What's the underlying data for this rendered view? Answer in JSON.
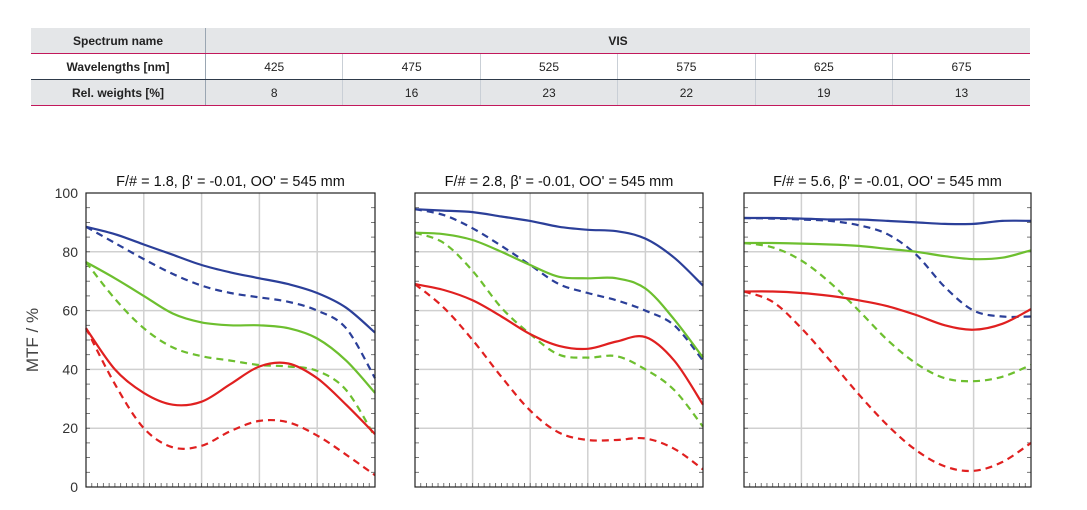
{
  "table": {
    "spectrum_label": "Spectrum name",
    "spectrum_value": "VIS",
    "wavelength_label": "Wavelengths [nm]",
    "wavelengths": [
      "425",
      "475",
      "525",
      "575",
      "625",
      "675"
    ],
    "weights_label": "Rel. weights [%]",
    "weights": [
      "8",
      "16",
      "23",
      "22",
      "19",
      "13"
    ],
    "accent_color": "#c2185b"
  },
  "chart_data": [
    {
      "type": "line",
      "title": "F/# = 1.8, β' = -0.01, OO' = 545 mm",
      "ylabel": "MTF / %",
      "xlabel": "",
      "ylim": [
        0,
        100
      ],
      "xlim": [
        0,
        100
      ],
      "yticks": [
        "0",
        "20",
        "40",
        "60",
        "80",
        "100"
      ],
      "grid": true,
      "series": [
        {
          "color": "#2b3f99",
          "dash": false,
          "x": [
            0,
            10,
            20,
            30,
            40,
            50,
            60,
            70,
            80,
            90,
            100
          ],
          "y": [
            88.5,
            86,
            82.5,
            79,
            75.5,
            73,
            71,
            69,
            66,
            61,
            52.5
          ]
        },
        {
          "color": "#2b3f99",
          "dash": true,
          "x": [
            0,
            10,
            20,
            30,
            40,
            50,
            60,
            70,
            80,
            90,
            100
          ],
          "y": [
            88.5,
            83,
            77.5,
            72.5,
            68.5,
            66,
            64.5,
            63,
            60,
            54,
            37
          ]
        },
        {
          "color": "#6dbf2f",
          "dash": false,
          "x": [
            0,
            10,
            20,
            30,
            40,
            50,
            60,
            70,
            80,
            90,
            100
          ],
          "y": [
            76.5,
            71,
            65,
            59,
            56,
            55,
            55,
            54,
            50.5,
            43,
            32
          ]
        },
        {
          "color": "#6dbf2f",
          "dash": true,
          "x": [
            0,
            10,
            20,
            30,
            40,
            50,
            60,
            70,
            80,
            90,
            100
          ],
          "y": [
            76.5,
            64,
            54,
            47.5,
            44.5,
            43,
            41.5,
            41,
            39.5,
            33,
            17
          ]
        },
        {
          "color": "#e02020",
          "dash": false,
          "x": [
            0,
            10,
            20,
            30,
            40,
            50,
            60,
            70,
            80,
            90,
            100
          ],
          "y": [
            54,
            40,
            32,
            28,
            29,
            35,
            41,
            42,
            37,
            28,
            18
          ]
        },
        {
          "color": "#e02020",
          "dash": true,
          "x": [
            0,
            10,
            20,
            30,
            40,
            50,
            60,
            70,
            80,
            90,
            100
          ],
          "y": [
            54,
            35,
            20,
            13.5,
            14,
            19,
            22.5,
            22,
            17.5,
            11,
            4
          ]
        }
      ]
    },
    {
      "type": "line",
      "title": "F/# = 2.8, β' = -0.01, OO' = 545 mm",
      "ylabel": "",
      "xlabel": "",
      "ylim": [
        0,
        100
      ],
      "xlim": [
        0,
        100
      ],
      "grid": true,
      "series": [
        {
          "color": "#2b3f99",
          "dash": false,
          "x": [
            0,
            10,
            20,
            30,
            40,
            50,
            60,
            70,
            80,
            90,
            100
          ],
          "y": [
            94.5,
            94,
            93.5,
            92,
            90.5,
            88.5,
            87.5,
            87,
            84.5,
            78,
            68.5
          ]
        },
        {
          "color": "#2b3f99",
          "dash": true,
          "x": [
            0,
            10,
            20,
            30,
            40,
            50,
            60,
            70,
            80,
            90,
            100
          ],
          "y": [
            94.5,
            92.5,
            88,
            82,
            75.5,
            69,
            66,
            63.5,
            60,
            55,
            43
          ]
        },
        {
          "color": "#6dbf2f",
          "dash": false,
          "x": [
            0,
            10,
            20,
            30,
            40,
            50,
            60,
            70,
            80,
            90,
            100
          ],
          "y": [
            86.5,
            86,
            84,
            80,
            75.5,
            71.5,
            71,
            71,
            67.5,
            57,
            44
          ]
        },
        {
          "color": "#6dbf2f",
          "dash": true,
          "x": [
            0,
            10,
            20,
            30,
            40,
            50,
            60,
            70,
            80,
            90,
            100
          ],
          "y": [
            86.5,
            83,
            73.5,
            61,
            52,
            45,
            44,
            44.5,
            40,
            33,
            20.5
          ]
        },
        {
          "color": "#e02020",
          "dash": false,
          "x": [
            0,
            10,
            20,
            30,
            40,
            50,
            60,
            70,
            80,
            90,
            100
          ],
          "y": [
            69,
            67,
            63.5,
            58,
            52,
            48,
            47,
            49.5,
            51,
            43,
            28
          ]
        },
        {
          "color": "#e02020",
          "dash": true,
          "x": [
            0,
            10,
            20,
            30,
            40,
            50,
            60,
            70,
            80,
            90,
            100
          ],
          "y": [
            69,
            61,
            50,
            37.5,
            26,
            18.5,
            16,
            16,
            16.5,
            13,
            6
          ]
        }
      ]
    },
    {
      "type": "line",
      "title": "F/# = 5.6, β' = -0.01, OO' = 545 mm",
      "ylabel": "",
      "xlabel": "",
      "ylim": [
        0,
        100
      ],
      "xlim": [
        0,
        100
      ],
      "grid": true,
      "series": [
        {
          "color": "#2b3f99",
          "dash": false,
          "x": [
            0,
            10,
            20,
            30,
            40,
            50,
            60,
            70,
            80,
            90,
            100
          ],
          "y": [
            91.5,
            91.5,
            91.3,
            91,
            91,
            90.5,
            90,
            89.5,
            89.5,
            90.5,
            90.5
          ]
        },
        {
          "color": "#2b3f99",
          "dash": true,
          "x": [
            0,
            10,
            20,
            30,
            40,
            50,
            60,
            70,
            80,
            90,
            100
          ],
          "y": [
            91.5,
            91.3,
            91,
            90.5,
            89,
            86,
            79,
            68,
            60,
            58,
            58
          ]
        },
        {
          "color": "#6dbf2f",
          "dash": false,
          "x": [
            0,
            10,
            20,
            30,
            40,
            50,
            60,
            70,
            80,
            90,
            100
          ],
          "y": [
            83,
            83,
            82.8,
            82.5,
            82,
            81,
            80,
            78.5,
            77.5,
            78,
            80.5
          ]
        },
        {
          "color": "#6dbf2f",
          "dash": true,
          "x": [
            0,
            10,
            20,
            30,
            40,
            50,
            60,
            70,
            80,
            90,
            100
          ],
          "y": [
            83,
            81.5,
            77,
            69.5,
            60,
            50,
            42,
            37,
            36,
            37.5,
            41.5
          ]
        },
        {
          "color": "#e02020",
          "dash": false,
          "x": [
            0,
            10,
            20,
            30,
            40,
            50,
            60,
            70,
            80,
            90,
            100
          ],
          "y": [
            66.5,
            66.5,
            66,
            65,
            63.5,
            61.5,
            58.5,
            55,
            53.5,
            55.5,
            60.5
          ]
        },
        {
          "color": "#e02020",
          "dash": true,
          "x": [
            0,
            10,
            20,
            30,
            40,
            50,
            60,
            70,
            80,
            90,
            100
          ],
          "y": [
            66.5,
            63,
            54,
            43,
            31.5,
            21,
            12.5,
            7,
            5.5,
            8.5,
            15
          ]
        }
      ]
    }
  ]
}
